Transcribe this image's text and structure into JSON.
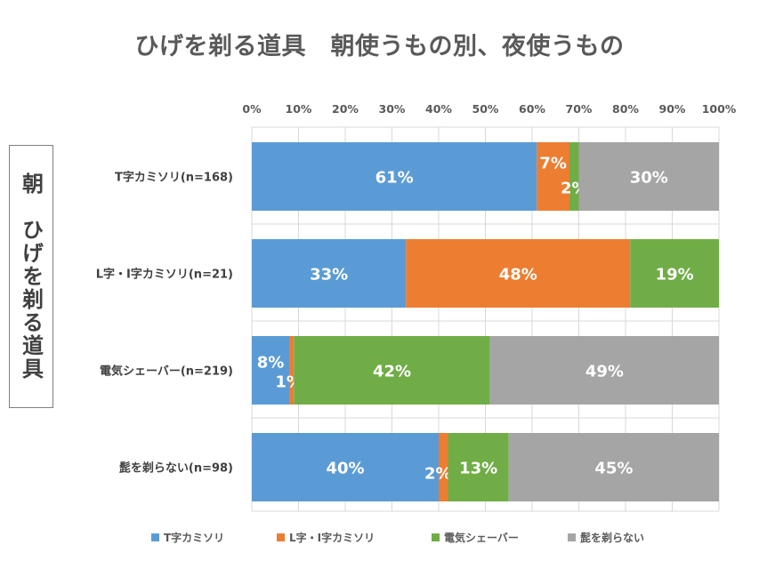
{
  "chart_data": {
    "type": "bar",
    "orientation": "horizontal",
    "stacked": "percent",
    "title": "ひげを剃る道具　朝使うもの別、夜使うもの",
    "y_group_label": "朝　ひげを剃る道具",
    "categories": [
      "T字カミソリ(n=168)",
      "L字・I字カミソリ(n=21)",
      "電気シェーバー(n=219)",
      "髭を剃らない(n=98)"
    ],
    "series": [
      {
        "name": "T字カミソリ",
        "color": "#5B9BD5",
        "values": [
          61,
          33,
          8,
          40
        ],
        "labels": [
          "61%",
          "33%",
          "8%",
          "40%"
        ]
      },
      {
        "name": "L字・I字カミソリ",
        "color": "#ED7D31",
        "values": [
          7,
          48,
          1,
          2
        ],
        "labels": [
          "7%",
          "48%",
          "1%",
          "2%"
        ]
      },
      {
        "name": "電気シェーバー",
        "color": "#70AD47",
        "values": [
          2,
          19,
          42,
          13
        ],
        "labels": [
          "2%",
          "19%",
          "42%",
          "13%"
        ]
      },
      {
        "name": "髭を剃らない",
        "color": "#A5A5A5",
        "values": [
          30,
          0,
          49,
          45
        ],
        "labels": [
          "30%",
          "",
          "49%",
          "45%"
        ]
      }
    ],
    "xlim": [
      0,
      100
    ],
    "x_ticks": [
      "0%",
      "10%",
      "20%",
      "30%",
      "40%",
      "50%",
      "60%",
      "70%",
      "80%",
      "90%",
      "100%"
    ],
    "x_axis_position": "top",
    "grid": true,
    "legend_position": "bottom"
  }
}
